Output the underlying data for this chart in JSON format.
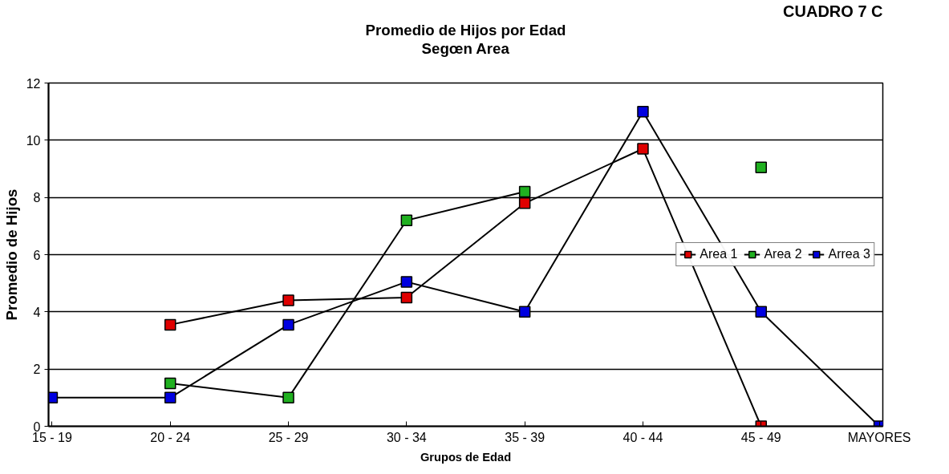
{
  "chart_data": {
    "type": "line",
    "title": "Promedio de Hijos por Edad",
    "subtitle": "Segœn Area",
    "xlabel": "Grupos de Edad",
    "ylabel": "Promedio de Hijos",
    "annotations": [
      "CUADRO 7 C"
    ],
    "categories": [
      "15 - 19",
      "20 - 24",
      "25 - 29",
      "30 - 34",
      "35 - 39",
      "40 - 44",
      "45 - 49",
      "MAYORES"
    ],
    "series": [
      {
        "name": "Area 1",
        "color": "#e00000",
        "values": [
          null,
          3.55,
          4.4,
          4.5,
          7.8,
          9.7,
          0,
          null
        ]
      },
      {
        "name": "Area 2",
        "color": "#20b020",
        "values": [
          null,
          1.5,
          1,
          7.2,
          8.2,
          null,
          9.05,
          null
        ]
      },
      {
        "name": "Arrea 3",
        "color": "#0000e0",
        "values": [
          1,
          1,
          3.55,
          5.05,
          4,
          11,
          4,
          0
        ]
      }
    ],
    "ylim": [
      0,
      12
    ],
    "yticks": [
      0,
      2,
      4,
      6,
      8,
      10,
      12
    ],
    "grid": "y",
    "legend": "right",
    "marker": "square",
    "line_style": "solid"
  }
}
